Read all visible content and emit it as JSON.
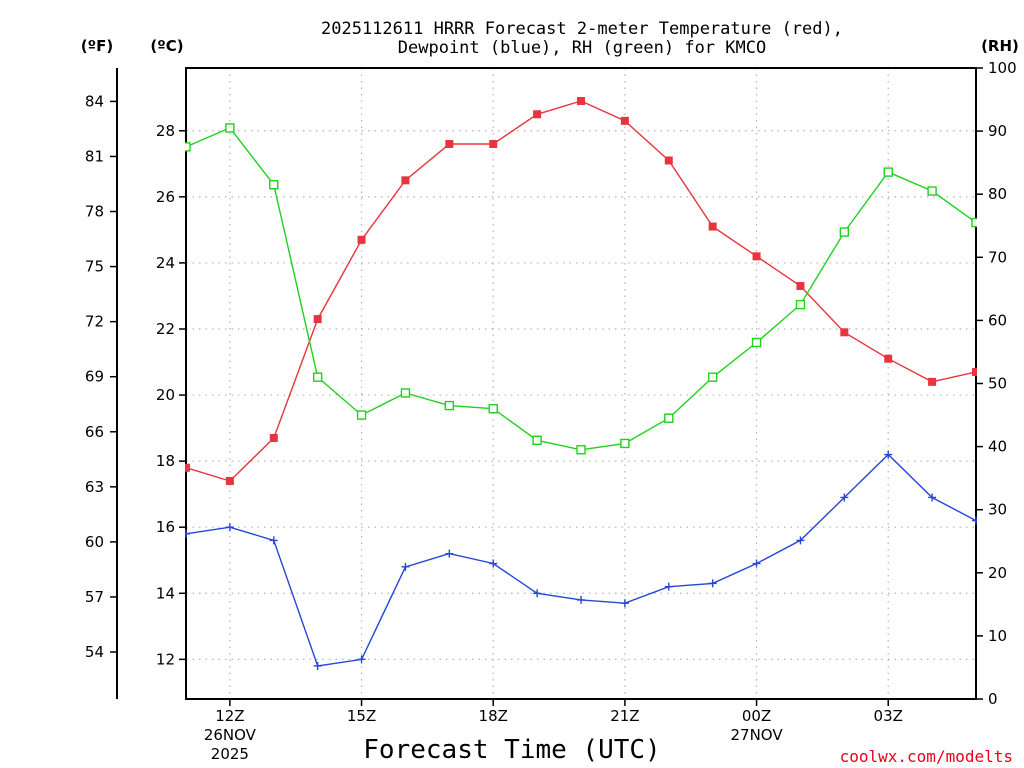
{
  "chart_data": {
    "type": "line",
    "title_line1": "2025112611 HRRR Forecast 2-meter Temperature (red),",
    "title_line2": "Dewpoint (blue), RH (green) for KMCO",
    "left_outer_unit": "(ºF)",
    "left_inner_unit": "(ºC)",
    "right_unit": "(RH)",
    "xlabel": "Forecast Time (UTC)",
    "credit": "coolwx.com/modelts",
    "x_hours_utc": [
      11,
      12,
      13,
      14,
      15,
      16,
      17,
      18,
      19,
      20,
      21,
      22,
      23,
      24,
      25,
      26,
      27,
      28,
      29
    ],
    "x_ticks": [
      {
        "hour": 12,
        "label": "12Z",
        "date": "26NOV",
        "year": "2025"
      },
      {
        "hour": 15,
        "label": "15Z",
        "date": "",
        "year": ""
      },
      {
        "hour": 18,
        "label": "18Z",
        "date": "",
        "year": ""
      },
      {
        "hour": 21,
        "label": "21Z",
        "date": "",
        "year": ""
      },
      {
        "hour": 24,
        "label": "00Z",
        "date": "27NOV",
        "year": ""
      },
      {
        "hour": 27,
        "label": "03Z",
        "date": "",
        "year": ""
      }
    ],
    "celsius_axis": {
      "range": [
        10.8,
        29.9
      ],
      "ticks": [
        12,
        14,
        16,
        18,
        20,
        22,
        24,
        26,
        28
      ]
    },
    "fahrenheit_ticks": [
      54,
      57,
      60,
      63,
      66,
      69,
      72,
      75,
      78,
      81,
      84
    ],
    "rh_axis": {
      "range": [
        0,
        100
      ],
      "ticks": [
        0,
        10,
        20,
        30,
        40,
        50,
        60,
        70,
        80,
        90,
        100
      ]
    },
    "series": [
      {
        "name": "2-meter Temperature",
        "units": "C",
        "color": "#e8343c",
        "marker": "filled-square",
        "values": [
          17.8,
          17.4,
          18.7,
          22.3,
          24.7,
          26.5,
          27.6,
          27.6,
          28.5,
          28.9,
          28.3,
          27.1,
          25.1,
          24.2,
          23.3,
          21.9,
          21.1,
          20.4,
          20.7
        ]
      },
      {
        "name": "Dewpoint",
        "units": "C",
        "color": "#2646d8",
        "marker": "plus",
        "values": [
          15.8,
          16.0,
          15.6,
          11.8,
          12.0,
          14.8,
          15.2,
          14.9,
          14.0,
          13.8,
          13.7,
          14.2,
          14.3,
          14.9,
          15.6,
          16.9,
          18.2,
          16.9,
          16.2
        ]
      },
      {
        "name": "Relative Humidity",
        "units": "%",
        "color": "#1ed21e",
        "marker": "open-square",
        "values": [
          87.5,
          90.5,
          81.5,
          51.0,
          45.0,
          48.5,
          46.5,
          46.0,
          41.0,
          39.5,
          40.5,
          44.5,
          51.0,
          56.5,
          62.5,
          74.0,
          83.5,
          80.5,
          75.5
        ]
      }
    ]
  }
}
